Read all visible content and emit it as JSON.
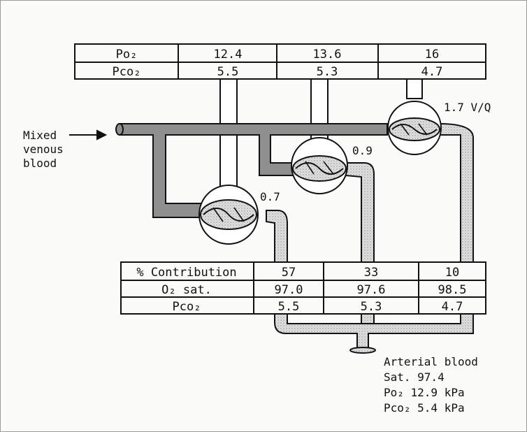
{
  "top_table": {
    "rows": [
      {
        "label": "Po₂",
        "values": [
          "12.4",
          "13.6",
          "16"
        ]
      },
      {
        "label": "Pco₂",
        "values": [
          "5.5",
          "5.3",
          "4.7"
        ]
      }
    ]
  },
  "mixed_venous": {
    "line1": "Mixed",
    "line2": "venous",
    "line3": "blood"
  },
  "vq_labels": {
    "unit_a": "0.7",
    "unit_b": "0.9",
    "unit_c": "1.7 V/Q"
  },
  "bottom_table": {
    "rows": [
      {
        "label": "% Contribution",
        "values": [
          "57",
          "33",
          "10"
        ]
      },
      {
        "label": "O₂ sat.",
        "values": [
          "97.0",
          "97.6",
          "98.5"
        ]
      },
      {
        "label": "Pco₂",
        "values": [
          "5.5",
          "5.3",
          "4.7"
        ]
      }
    ]
  },
  "arterial": {
    "title": "Arterial blood",
    "sat": "Sat. 97.4",
    "po2": "Po₂ 12.9 kPa",
    "pco2": "Pco₂ 5.4 kPa"
  },
  "colors": {
    "venous": "#8f8f8f",
    "arterial": "#d4d4d4",
    "ink": "#111111"
  }
}
